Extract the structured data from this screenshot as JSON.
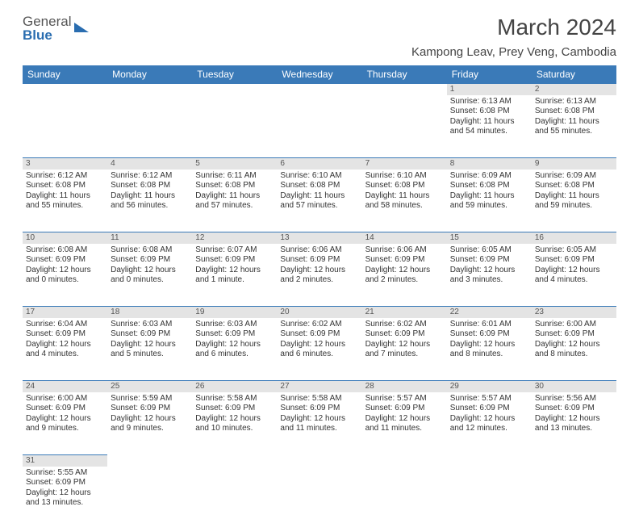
{
  "logo": {
    "line1": "General",
    "line2": "Blue"
  },
  "title": "March 2024",
  "location": "Kampong Leav, Prey Veng, Cambodia",
  "colors": {
    "header_bg": "#3a7ab8",
    "header_text": "#ffffff",
    "daynum_bg": "#e4e4e4",
    "row_divider": "#3a7ab8",
    "logo_gray": "#555555",
    "logo_blue": "#2a6db0"
  },
  "dayHeaders": [
    "Sunday",
    "Monday",
    "Tuesday",
    "Wednesday",
    "Thursday",
    "Friday",
    "Saturday"
  ],
  "weeks": [
    [
      null,
      null,
      null,
      null,
      null,
      {
        "n": "1",
        "l1": "Sunrise: 6:13 AM",
        "l2": "Sunset: 6:08 PM",
        "l3": "Daylight: 11 hours",
        "l4": "and 54 minutes."
      },
      {
        "n": "2",
        "l1": "Sunrise: 6:13 AM",
        "l2": "Sunset: 6:08 PM",
        "l3": "Daylight: 11 hours",
        "l4": "and 55 minutes."
      }
    ],
    [
      {
        "n": "3",
        "l1": "Sunrise: 6:12 AM",
        "l2": "Sunset: 6:08 PM",
        "l3": "Daylight: 11 hours",
        "l4": "and 55 minutes."
      },
      {
        "n": "4",
        "l1": "Sunrise: 6:12 AM",
        "l2": "Sunset: 6:08 PM",
        "l3": "Daylight: 11 hours",
        "l4": "and 56 minutes."
      },
      {
        "n": "5",
        "l1": "Sunrise: 6:11 AM",
        "l2": "Sunset: 6:08 PM",
        "l3": "Daylight: 11 hours",
        "l4": "and 57 minutes."
      },
      {
        "n": "6",
        "l1": "Sunrise: 6:10 AM",
        "l2": "Sunset: 6:08 PM",
        "l3": "Daylight: 11 hours",
        "l4": "and 57 minutes."
      },
      {
        "n": "7",
        "l1": "Sunrise: 6:10 AM",
        "l2": "Sunset: 6:08 PM",
        "l3": "Daylight: 11 hours",
        "l4": "and 58 minutes."
      },
      {
        "n": "8",
        "l1": "Sunrise: 6:09 AM",
        "l2": "Sunset: 6:08 PM",
        "l3": "Daylight: 11 hours",
        "l4": "and 59 minutes."
      },
      {
        "n": "9",
        "l1": "Sunrise: 6:09 AM",
        "l2": "Sunset: 6:08 PM",
        "l3": "Daylight: 11 hours",
        "l4": "and 59 minutes."
      }
    ],
    [
      {
        "n": "10",
        "l1": "Sunrise: 6:08 AM",
        "l2": "Sunset: 6:09 PM",
        "l3": "Daylight: 12 hours",
        "l4": "and 0 minutes."
      },
      {
        "n": "11",
        "l1": "Sunrise: 6:08 AM",
        "l2": "Sunset: 6:09 PM",
        "l3": "Daylight: 12 hours",
        "l4": "and 0 minutes."
      },
      {
        "n": "12",
        "l1": "Sunrise: 6:07 AM",
        "l2": "Sunset: 6:09 PM",
        "l3": "Daylight: 12 hours",
        "l4": "and 1 minute."
      },
      {
        "n": "13",
        "l1": "Sunrise: 6:06 AM",
        "l2": "Sunset: 6:09 PM",
        "l3": "Daylight: 12 hours",
        "l4": "and 2 minutes."
      },
      {
        "n": "14",
        "l1": "Sunrise: 6:06 AM",
        "l2": "Sunset: 6:09 PM",
        "l3": "Daylight: 12 hours",
        "l4": "and 2 minutes."
      },
      {
        "n": "15",
        "l1": "Sunrise: 6:05 AM",
        "l2": "Sunset: 6:09 PM",
        "l3": "Daylight: 12 hours",
        "l4": "and 3 minutes."
      },
      {
        "n": "16",
        "l1": "Sunrise: 6:05 AM",
        "l2": "Sunset: 6:09 PM",
        "l3": "Daylight: 12 hours",
        "l4": "and 4 minutes."
      }
    ],
    [
      {
        "n": "17",
        "l1": "Sunrise: 6:04 AM",
        "l2": "Sunset: 6:09 PM",
        "l3": "Daylight: 12 hours",
        "l4": "and 4 minutes."
      },
      {
        "n": "18",
        "l1": "Sunrise: 6:03 AM",
        "l2": "Sunset: 6:09 PM",
        "l3": "Daylight: 12 hours",
        "l4": "and 5 minutes."
      },
      {
        "n": "19",
        "l1": "Sunrise: 6:03 AM",
        "l2": "Sunset: 6:09 PM",
        "l3": "Daylight: 12 hours",
        "l4": "and 6 minutes."
      },
      {
        "n": "20",
        "l1": "Sunrise: 6:02 AM",
        "l2": "Sunset: 6:09 PM",
        "l3": "Daylight: 12 hours",
        "l4": "and 6 minutes."
      },
      {
        "n": "21",
        "l1": "Sunrise: 6:02 AM",
        "l2": "Sunset: 6:09 PM",
        "l3": "Daylight: 12 hours",
        "l4": "and 7 minutes."
      },
      {
        "n": "22",
        "l1": "Sunrise: 6:01 AM",
        "l2": "Sunset: 6:09 PM",
        "l3": "Daylight: 12 hours",
        "l4": "and 8 minutes."
      },
      {
        "n": "23",
        "l1": "Sunrise: 6:00 AM",
        "l2": "Sunset: 6:09 PM",
        "l3": "Daylight: 12 hours",
        "l4": "and 8 minutes."
      }
    ],
    [
      {
        "n": "24",
        "l1": "Sunrise: 6:00 AM",
        "l2": "Sunset: 6:09 PM",
        "l3": "Daylight: 12 hours",
        "l4": "and 9 minutes."
      },
      {
        "n": "25",
        "l1": "Sunrise: 5:59 AM",
        "l2": "Sunset: 6:09 PM",
        "l3": "Daylight: 12 hours",
        "l4": "and 9 minutes."
      },
      {
        "n": "26",
        "l1": "Sunrise: 5:58 AM",
        "l2": "Sunset: 6:09 PM",
        "l3": "Daylight: 12 hours",
        "l4": "and 10 minutes."
      },
      {
        "n": "27",
        "l1": "Sunrise: 5:58 AM",
        "l2": "Sunset: 6:09 PM",
        "l3": "Daylight: 12 hours",
        "l4": "and 11 minutes."
      },
      {
        "n": "28",
        "l1": "Sunrise: 5:57 AM",
        "l2": "Sunset: 6:09 PM",
        "l3": "Daylight: 12 hours",
        "l4": "and 11 minutes."
      },
      {
        "n": "29",
        "l1": "Sunrise: 5:57 AM",
        "l2": "Sunset: 6:09 PM",
        "l3": "Daylight: 12 hours",
        "l4": "and 12 minutes."
      },
      {
        "n": "30",
        "l1": "Sunrise: 5:56 AM",
        "l2": "Sunset: 6:09 PM",
        "l3": "Daylight: 12 hours",
        "l4": "and 13 minutes."
      }
    ],
    [
      {
        "n": "31",
        "l1": "Sunrise: 5:55 AM",
        "l2": "Sunset: 6:09 PM",
        "l3": "Daylight: 12 hours",
        "l4": "and 13 minutes."
      },
      null,
      null,
      null,
      null,
      null,
      null
    ]
  ]
}
